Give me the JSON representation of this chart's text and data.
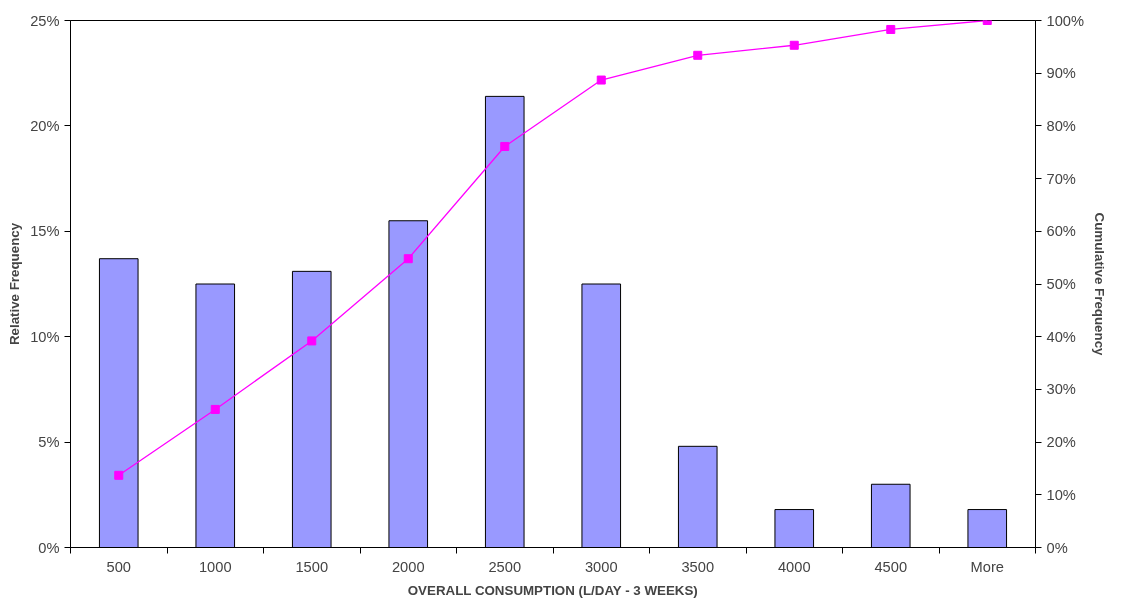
{
  "chart_data": {
    "type": "bar",
    "xlabel": "OVERALL CONSUMPTION (L/DAY - 3 WEEKS)",
    "ylabel": "Relative Frequency",
    "y2label": "Cumulative Frequency",
    "categories": [
      "500",
      "1000",
      "1500",
      "2000",
      "2500",
      "3000",
      "3500",
      "4000",
      "4500",
      "More"
    ],
    "series": [
      {
        "color": "#9999ff",
        "values": [
          13.7,
          12.5,
          13.1,
          15.5,
          21.4,
          12.5,
          4.8,
          1.8,
          3.0,
          1.8
        ]
      },
      {
        "type": "line",
        "axis": "y2",
        "color": "#ff00ff",
        "marker": "square",
        "line_style": "solid",
        "values": [
          13.7,
          26.2,
          39.2,
          54.8,
          76.1,
          88.7,
          93.4,
          95.3,
          98.3,
          100
        ]
      }
    ],
    "ylim": [
      0,
      25
    ],
    "yticks": [
      {
        "value": 0,
        "label": "0%"
      },
      {
        "value": 5,
        "label": "5%"
      },
      {
        "value": 10,
        "label": "10%"
      },
      {
        "value": 15,
        "label": "15%"
      },
      {
        "value": 20,
        "label": "20%"
      },
      {
        "value": 25,
        "label": "25%"
      }
    ],
    "y2lim": [
      0,
      100
    ],
    "y2ticks": [
      {
        "value": 0,
        "label": "0%"
      },
      {
        "value": 10,
        "label": "10%"
      },
      {
        "value": 20,
        "label": "20%"
      },
      {
        "value": 30,
        "label": "30%"
      },
      {
        "value": 40,
        "label": "40%"
      },
      {
        "value": 50,
        "label": "50%"
      },
      {
        "value": 60,
        "label": "60%"
      },
      {
        "value": 70,
        "label": "70%"
      },
      {
        "value": 80,
        "label": "80%"
      },
      {
        "value": 90,
        "label": "90%"
      },
      {
        "value": 100,
        "label": "100%"
      }
    ],
    "grid": false
  }
}
